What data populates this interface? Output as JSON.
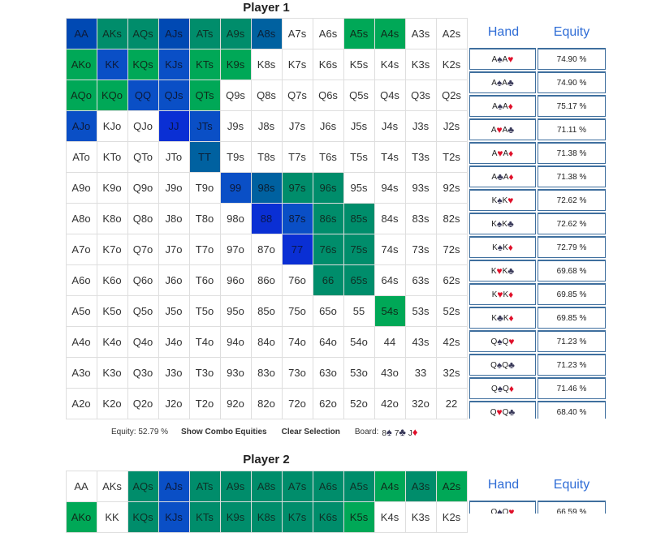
{
  "player1": {
    "title": "Player 1",
    "grid": [
      [
        [
          "AA",
          "c1"
        ],
        [
          "AKs",
          "c2"
        ],
        [
          "AQs",
          "c2"
        ],
        [
          "AJs",
          "c1"
        ],
        [
          "ATs",
          "c2"
        ],
        [
          "A9s",
          "c2"
        ],
        [
          "A8s",
          "c4"
        ],
        [
          "A7s",
          ""
        ],
        [
          "A6s",
          ""
        ],
        [
          "A5s",
          "c3"
        ],
        [
          "A4s",
          "c3"
        ],
        [
          "A3s",
          ""
        ],
        [
          "A2s",
          ""
        ]
      ],
      [
        [
          "AKo",
          "c3"
        ],
        [
          "KK",
          "c6"
        ],
        [
          "KQs",
          "c3"
        ],
        [
          "KJs",
          "c6"
        ],
        [
          "KTs",
          "c3"
        ],
        [
          "K9s",
          "c3"
        ],
        [
          "K8s",
          ""
        ],
        [
          "K7s",
          ""
        ],
        [
          "K6s",
          ""
        ],
        [
          "K5s",
          ""
        ],
        [
          "K4s",
          ""
        ],
        [
          "K3s",
          ""
        ],
        [
          "K2s",
          ""
        ]
      ],
      [
        [
          "AQo",
          "c3"
        ],
        [
          "KQo",
          "c3"
        ],
        [
          "QQ",
          "c6"
        ],
        [
          "QJs",
          "c6"
        ],
        [
          "QTs",
          "c3"
        ],
        [
          "Q9s",
          ""
        ],
        [
          "Q8s",
          ""
        ],
        [
          "Q7s",
          ""
        ],
        [
          "Q6s",
          ""
        ],
        [
          "Q5s",
          ""
        ],
        [
          "Q4s",
          ""
        ],
        [
          "Q3s",
          ""
        ],
        [
          "Q2s",
          ""
        ]
      ],
      [
        [
          "AJo",
          "c6"
        ],
        [
          "KJo",
          ""
        ],
        [
          "QJo",
          ""
        ],
        [
          "JJ",
          "c5"
        ],
        [
          "JTs",
          "c6"
        ],
        [
          "J9s",
          ""
        ],
        [
          "J8s",
          ""
        ],
        [
          "J7s",
          ""
        ],
        [
          "J6s",
          ""
        ],
        [
          "J5s",
          ""
        ],
        [
          "J4s",
          ""
        ],
        [
          "J3s",
          ""
        ],
        [
          "J2s",
          ""
        ]
      ],
      [
        [
          "ATo",
          ""
        ],
        [
          "KTo",
          ""
        ],
        [
          "QTo",
          ""
        ],
        [
          "JTo",
          ""
        ],
        [
          "TT",
          "c4"
        ],
        [
          "T9s",
          ""
        ],
        [
          "T8s",
          ""
        ],
        [
          "T7s",
          ""
        ],
        [
          "T6s",
          ""
        ],
        [
          "T5s",
          ""
        ],
        [
          "T4s",
          ""
        ],
        [
          "T3s",
          ""
        ],
        [
          "T2s",
          ""
        ]
      ],
      [
        [
          "A9o",
          ""
        ],
        [
          "K9o",
          ""
        ],
        [
          "Q9o",
          ""
        ],
        [
          "J9o",
          ""
        ],
        [
          "T9o",
          ""
        ],
        [
          "99",
          "c6"
        ],
        [
          "98s",
          "c4"
        ],
        [
          "97s",
          "c2"
        ],
        [
          "96s",
          "c2"
        ],
        [
          "95s",
          ""
        ],
        [
          "94s",
          ""
        ],
        [
          "93s",
          ""
        ],
        [
          "92s",
          ""
        ]
      ],
      [
        [
          "A8o",
          ""
        ],
        [
          "K8o",
          ""
        ],
        [
          "Q8o",
          ""
        ],
        [
          "J8o",
          ""
        ],
        [
          "T8o",
          ""
        ],
        [
          "98o",
          ""
        ],
        [
          "88",
          "c5"
        ],
        [
          "87s",
          "c6"
        ],
        [
          "86s",
          "c2"
        ],
        [
          "85s",
          "c2"
        ],
        [
          "84s",
          ""
        ],
        [
          "83s",
          ""
        ],
        [
          "82s",
          ""
        ]
      ],
      [
        [
          "A7o",
          ""
        ],
        [
          "K7o",
          ""
        ],
        [
          "Q7o",
          ""
        ],
        [
          "J7o",
          ""
        ],
        [
          "T7o",
          ""
        ],
        [
          "97o",
          ""
        ],
        [
          "87o",
          ""
        ],
        [
          "77",
          "c5"
        ],
        [
          "76s",
          "c2"
        ],
        [
          "75s",
          "c2"
        ],
        [
          "74s",
          ""
        ],
        [
          "73s",
          ""
        ],
        [
          "72s",
          ""
        ]
      ],
      [
        [
          "A6o",
          ""
        ],
        [
          "K6o",
          ""
        ],
        [
          "Q6o",
          ""
        ],
        [
          "J6o",
          ""
        ],
        [
          "T6o",
          ""
        ],
        [
          "96o",
          ""
        ],
        [
          "86o",
          ""
        ],
        [
          "76o",
          ""
        ],
        [
          "66",
          "c2"
        ],
        [
          "65s",
          "c2"
        ],
        [
          "64s",
          ""
        ],
        [
          "63s",
          ""
        ],
        [
          "62s",
          ""
        ]
      ],
      [
        [
          "A5o",
          ""
        ],
        [
          "K5o",
          ""
        ],
        [
          "Q5o",
          ""
        ],
        [
          "J5o",
          ""
        ],
        [
          "T5o",
          ""
        ],
        [
          "95o",
          ""
        ],
        [
          "85o",
          ""
        ],
        [
          "75o",
          ""
        ],
        [
          "65o",
          ""
        ],
        [
          "55",
          ""
        ],
        [
          "54s",
          "c3"
        ],
        [
          "53s",
          ""
        ],
        [
          "52s",
          ""
        ]
      ],
      [
        [
          "A4o",
          ""
        ],
        [
          "K4o",
          ""
        ],
        [
          "Q4o",
          ""
        ],
        [
          "J4o",
          ""
        ],
        [
          "T4o",
          ""
        ],
        [
          "94o",
          ""
        ],
        [
          "84o",
          ""
        ],
        [
          "74o",
          ""
        ],
        [
          "64o",
          ""
        ],
        [
          "54o",
          ""
        ],
        [
          "44",
          ""
        ],
        [
          "43s",
          ""
        ],
        [
          "42s",
          ""
        ]
      ],
      [
        [
          "A3o",
          ""
        ],
        [
          "K3o",
          ""
        ],
        [
          "Q3o",
          ""
        ],
        [
          "J3o",
          ""
        ],
        [
          "T3o",
          ""
        ],
        [
          "93o",
          ""
        ],
        [
          "83o",
          ""
        ],
        [
          "73o",
          ""
        ],
        [
          "63o",
          ""
        ],
        [
          "53o",
          ""
        ],
        [
          "43o",
          ""
        ],
        [
          "33",
          ""
        ],
        [
          "32s",
          ""
        ]
      ],
      [
        [
          "A2o",
          ""
        ],
        [
          "K2o",
          ""
        ],
        [
          "Q2o",
          ""
        ],
        [
          "J2o",
          ""
        ],
        [
          "T2o",
          ""
        ],
        [
          "92o",
          ""
        ],
        [
          "82o",
          ""
        ],
        [
          "72o",
          ""
        ],
        [
          "62o",
          ""
        ],
        [
          "52o",
          ""
        ],
        [
          "42o",
          ""
        ],
        [
          "32o",
          ""
        ],
        [
          "22",
          ""
        ]
      ]
    ],
    "panel_header": {
      "hand": "Hand",
      "equity": "Equity"
    },
    "combos": [
      {
        "r1": "A",
        "s1": "♠",
        "c1": "blk",
        "r2": "A",
        "s2": "♥",
        "c2": "red",
        "eq": "74.90 %"
      },
      {
        "r1": "A",
        "s1": "♠",
        "c1": "blk",
        "r2": "A",
        "s2": "♣",
        "c2": "blk",
        "eq": "74.90 %"
      },
      {
        "r1": "A",
        "s1": "♠",
        "c1": "blk",
        "r2": "A",
        "s2": "♦",
        "c2": "red",
        "eq": "75.17 %"
      },
      {
        "r1": "A",
        "s1": "♥",
        "c1": "red",
        "r2": "A",
        "s2": "♣",
        "c2": "blk",
        "eq": "71.11 %"
      },
      {
        "r1": "A",
        "s1": "♥",
        "c1": "red",
        "r2": "A",
        "s2": "♦",
        "c2": "red",
        "eq": "71.38 %"
      },
      {
        "r1": "A",
        "s1": "♣",
        "c1": "blk",
        "r2": "A",
        "s2": "♦",
        "c2": "red",
        "eq": "71.38 %"
      },
      {
        "r1": "K",
        "s1": "♠",
        "c1": "blk",
        "r2": "K",
        "s2": "♥",
        "c2": "red",
        "eq": "72.62 %"
      },
      {
        "r1": "K",
        "s1": "♠",
        "c1": "blk",
        "r2": "K",
        "s2": "♣",
        "c2": "blk",
        "eq": "72.62 %"
      },
      {
        "r1": "K",
        "s1": "♠",
        "c1": "blk",
        "r2": "K",
        "s2": "♦",
        "c2": "red",
        "eq": "72.79 %"
      },
      {
        "r1": "K",
        "s1": "♥",
        "c1": "red",
        "r2": "K",
        "s2": "♣",
        "c2": "blk",
        "eq": "69.68 %"
      },
      {
        "r1": "K",
        "s1": "♥",
        "c1": "red",
        "r2": "K",
        "s2": "♦",
        "c2": "red",
        "eq": "69.85 %"
      },
      {
        "r1": "K",
        "s1": "♣",
        "c1": "blk",
        "r2": "K",
        "s2": "♦",
        "c2": "red",
        "eq": "69.85 %"
      },
      {
        "r1": "Q",
        "s1": "♠",
        "c1": "blk",
        "r2": "Q",
        "s2": "♥",
        "c2": "red",
        "eq": "71.23 %"
      },
      {
        "r1": "Q",
        "s1": "♠",
        "c1": "blk",
        "r2": "Q",
        "s2": "♣",
        "c2": "blk",
        "eq": "71.23 %"
      },
      {
        "r1": "Q",
        "s1": "♠",
        "c1": "blk",
        "r2": "Q",
        "s2": "♦",
        "c2": "red",
        "eq": "71.46 %"
      },
      {
        "r1": "Q",
        "s1": "♥",
        "c1": "red",
        "r2": "Q",
        "s2": "♣",
        "c2": "blk",
        "eq": "68.40 %"
      }
    ],
    "footer": {
      "equity": "Equity: 52.79 %",
      "show_combo": "Show Combo Equities",
      "clear": "Clear Selection",
      "board_label": "Board:",
      "board": [
        {
          "r": "8",
          "s": "♠",
          "c": "blk"
        },
        {
          "r": "7",
          "s": "♣",
          "c": "blk"
        },
        {
          "r": "J",
          "s": "♦",
          "c": "red"
        }
      ]
    }
  },
  "player2": {
    "title": "Player 2",
    "grid": [
      [
        [
          "AA",
          ""
        ],
        [
          "AKs",
          ""
        ],
        [
          "AQs",
          "c2"
        ],
        [
          "AJs",
          "c6"
        ],
        [
          "ATs",
          "c2"
        ],
        [
          "A9s",
          "c2"
        ],
        [
          "A8s",
          "c2"
        ],
        [
          "A7s",
          "c2"
        ],
        [
          "A6s",
          "c2"
        ],
        [
          "A5s",
          "c2"
        ],
        [
          "A4s",
          "c3"
        ],
        [
          "A3s",
          "c2"
        ],
        [
          "A2s",
          "c3"
        ]
      ],
      [
        [
          "AKo",
          "c3"
        ],
        [
          "KK",
          ""
        ],
        [
          "KQs",
          "c2"
        ],
        [
          "KJs",
          "c6"
        ],
        [
          "KTs",
          "c2"
        ],
        [
          "K9s",
          "c2"
        ],
        [
          "K8s",
          "c2"
        ],
        [
          "K7s",
          "c2"
        ],
        [
          "K6s",
          "c2"
        ],
        [
          "K5s",
          "c3"
        ],
        [
          "K4s",
          ""
        ],
        [
          "K3s",
          ""
        ],
        [
          "K2s",
          ""
        ]
      ]
    ],
    "panel_header": {
      "hand": "Hand",
      "equity": "Equity"
    },
    "combos": [
      {
        "r1": "Q",
        "s1": "♠",
        "c1": "blk",
        "r2": "Q",
        "s2": "♥",
        "c2": "red",
        "eq": "66.59 %"
      }
    ]
  }
}
